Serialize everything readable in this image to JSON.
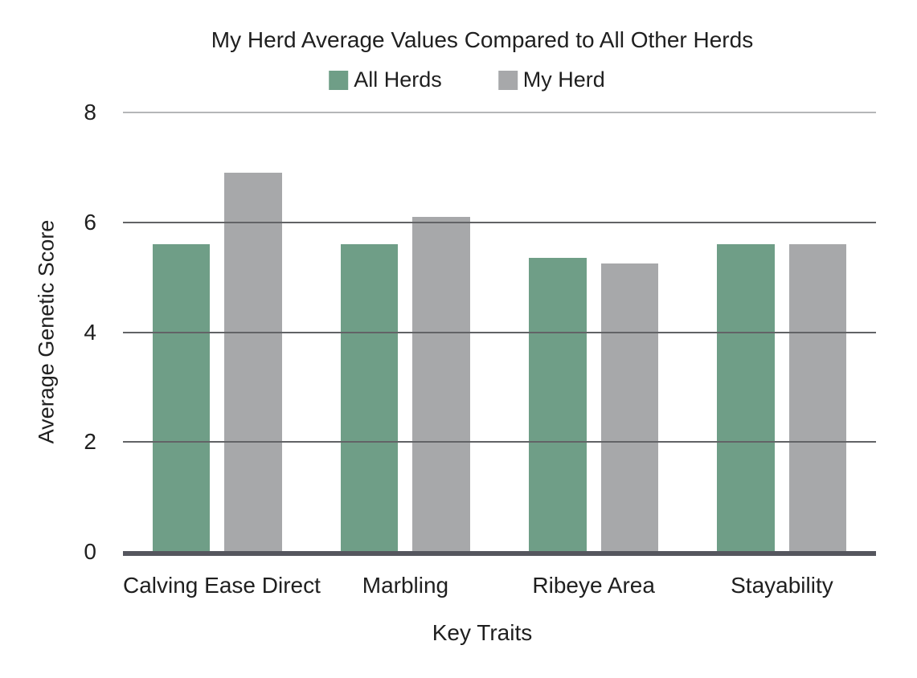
{
  "page": {
    "background": "#ffffff",
    "text_color": "#1f1f1f"
  },
  "chart_data": {
    "type": "bar",
    "title": "My Herd Average Values Compared to All Other Herds",
    "xlabel": "Key Traits",
    "ylabel": "Average Genetic Score",
    "categories": [
      "Calving Ease Direct",
      "Marbling",
      "Ribeye Area",
      "Stayability"
    ],
    "series": [
      {
        "name": "All Herds",
        "color": "#6F9E87",
        "values": [
          5.6,
          5.6,
          5.35,
          5.6
        ]
      },
      {
        "name": "My Herd",
        "color": "#A7A8AA",
        "values": [
          6.9,
          6.1,
          5.25,
          5.6
        ]
      }
    ],
    "ylim": [
      0,
      8
    ],
    "yticks": [
      0,
      2,
      4,
      6,
      8
    ],
    "grid": true,
    "legend_position": "top",
    "colors": {
      "gridline": "#626366",
      "top_gridline": "#b5b6b8",
      "axis_line": "#55565e",
      "text": "#1f1f1f"
    }
  }
}
